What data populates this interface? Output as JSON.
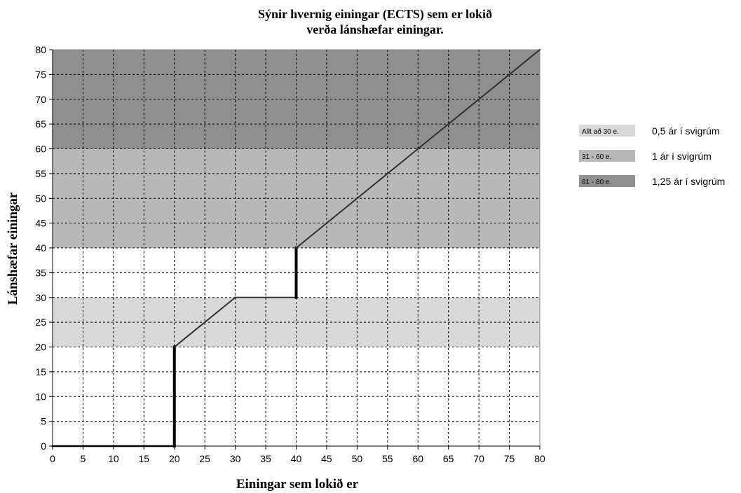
{
  "chart_data": {
    "type": "line",
    "title_line1": "Sýnir hvernig einingar (ECTS) sem er lokið",
    "title_line2": "verða lánshæfar einingar.",
    "xlabel": "Einingar sem lokið er",
    "ylabel": "Lánshæfar einingar",
    "xlim": [
      0,
      80
    ],
    "ylim": [
      0,
      80
    ],
    "xticks": [
      0,
      5,
      10,
      15,
      20,
      25,
      30,
      35,
      40,
      45,
      50,
      55,
      60,
      65,
      70,
      75,
      80
    ],
    "yticks": [
      0,
      5,
      10,
      15,
      20,
      25,
      30,
      35,
      40,
      45,
      50,
      55,
      60,
      65,
      70,
      75,
      80
    ],
    "grid": true,
    "legend_position": "right",
    "bands": [
      {
        "y0": 20,
        "y1": 30,
        "swatch_label": "Allt að 30 e.",
        "label": "0,5 ár í svigrúm",
        "color": "#d9d9d9"
      },
      {
        "y0": 40,
        "y1": 60,
        "swatch_label": "31 - 60 e.",
        "label": "1 ár í svigrúm",
        "color": "#b8b8b8"
      },
      {
        "y0": 60,
        "y1": 80,
        "swatch_label": "61 - 80 e.",
        "label": "1,25 ár í svigrúm",
        "color": "#8f8f8f"
      }
    ],
    "series": [
      {
        "points": [
          [
            0,
            0
          ],
          [
            20,
            0
          ],
          [
            20,
            20
          ],
          [
            30,
            30
          ],
          [
            40,
            30
          ],
          [
            40,
            40
          ],
          [
            80,
            80
          ]
        ]
      }
    ]
  }
}
